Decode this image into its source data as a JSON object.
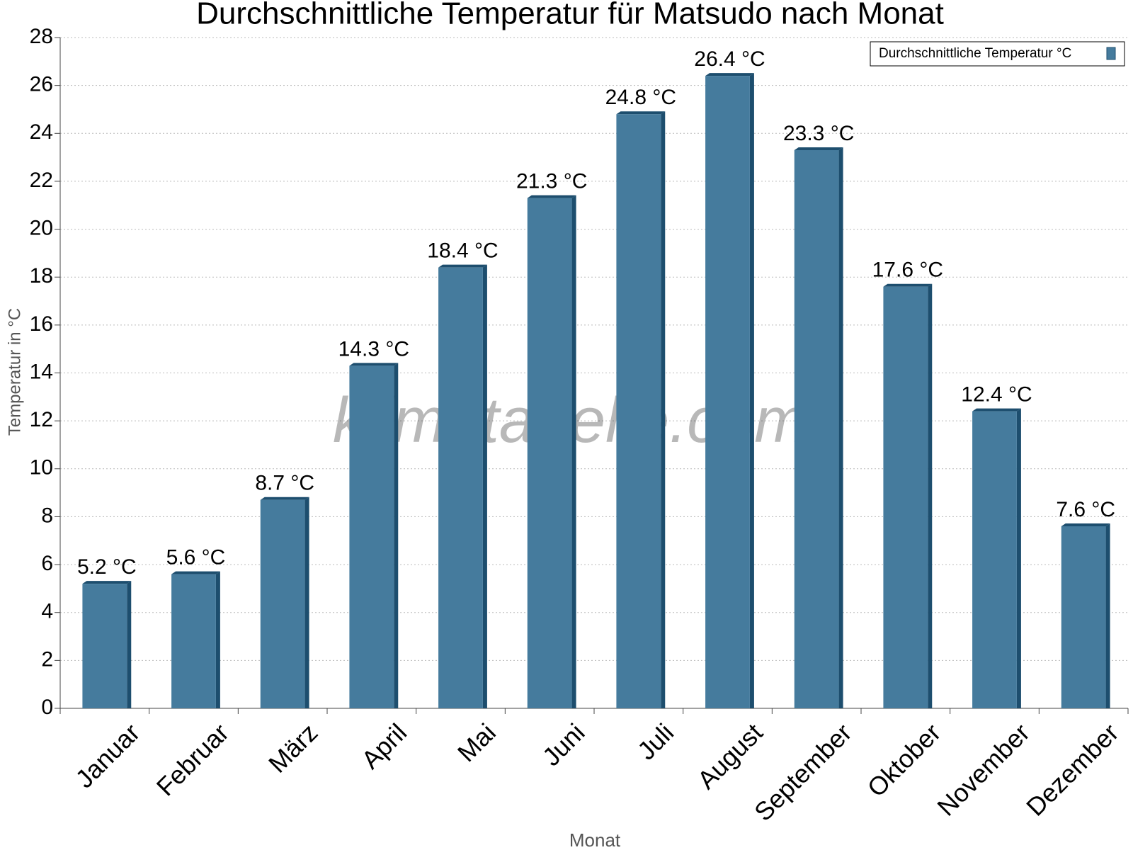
{
  "chart_data": {
    "type": "bar",
    "title": "Durchschnittliche Temperatur für Matsudo nach Monat",
    "x_label": "Monat",
    "y_label": "Temperatur in °C",
    "watermark": "klimatabelle.com",
    "categories": [
      "Januar",
      "Februar",
      "März",
      "April",
      "Mai",
      "Juni",
      "Juli",
      "August",
      "September",
      "Oktober",
      "November",
      "Dezember"
    ],
    "series": [
      {
        "name": "Durchschnittliche Temperatur °C",
        "color": "#457b9d",
        "values": [
          5.2,
          5.6,
          8.7,
          14.3,
          18.4,
          21.3,
          24.8,
          26.4,
          23.3,
          17.6,
          12.4,
          7.6
        ],
        "value_labels": [
          "5.2 °C",
          "5.6 °C",
          "8.7 °C",
          "14.3 °C",
          "18.4 °C",
          "21.3 °C",
          "24.8 °C",
          "26.4 °C",
          "23.3 °C",
          "17.6 °C",
          "12.4 °C",
          "7.6 °C"
        ]
      }
    ],
    "ylim": [
      0,
      28
    ],
    "yticks": [
      0,
      2,
      4,
      6,
      8,
      10,
      12,
      14,
      16,
      18,
      20,
      22,
      24,
      26,
      28
    ],
    "grid": true,
    "legend": "top-right"
  }
}
